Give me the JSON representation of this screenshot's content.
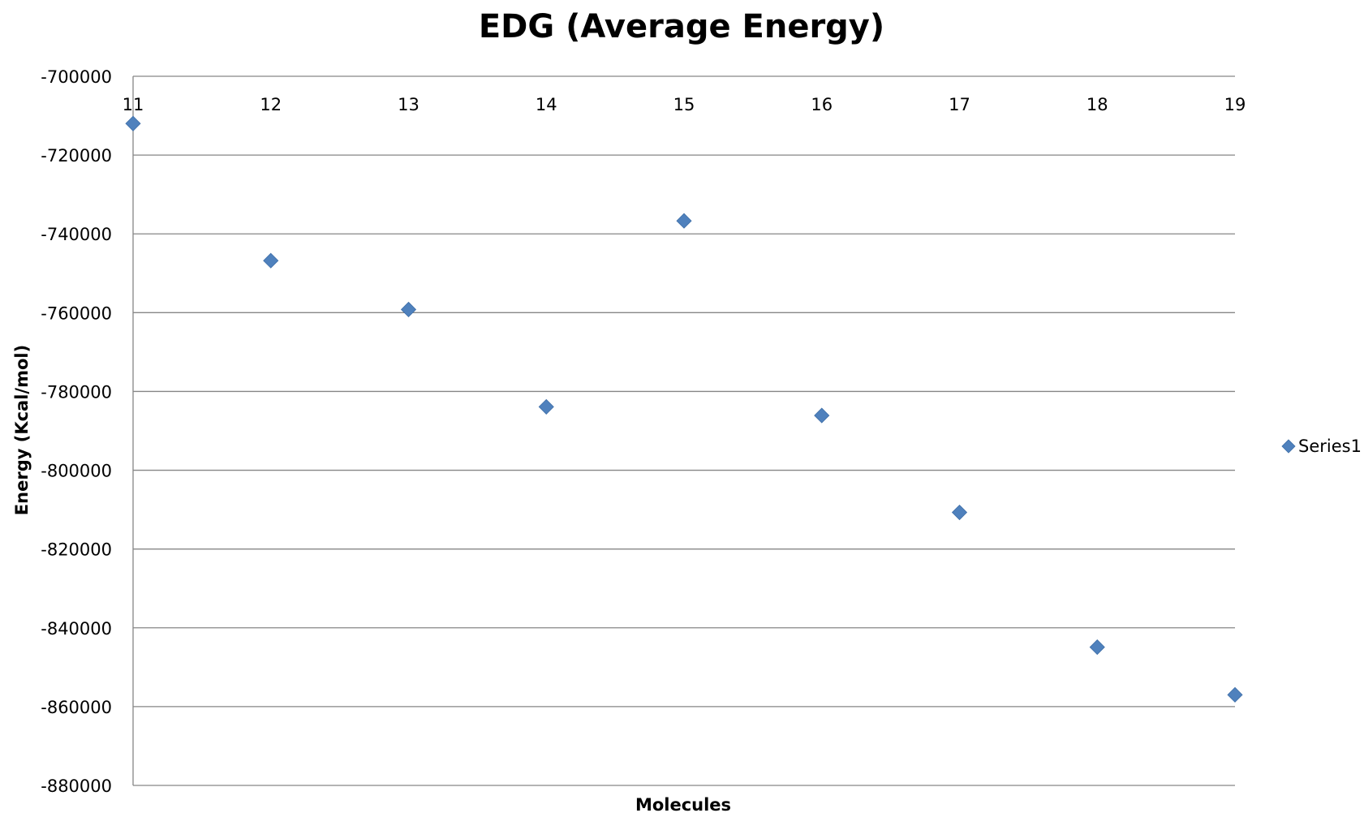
{
  "chart_data": {
    "type": "scatter",
    "title": "EDG (Average Energy)",
    "xlabel": "Molecules",
    "ylabel": "Energy (Kcal/mol)",
    "x": [
      11,
      12,
      13,
      14,
      15,
      16,
      17,
      18,
      19
    ],
    "x_ticks": [
      "11",
      "12",
      "13",
      "14",
      "15",
      "16",
      "17",
      "18",
      "19"
    ],
    "x_axis_position": "top",
    "ylim": [
      -880000,
      -700000
    ],
    "y_ticks": [
      -700000,
      -720000,
      -740000,
      -760000,
      -780000,
      -800000,
      -820000,
      -840000,
      -860000,
      -880000
    ],
    "grid": "horizontal",
    "legend_position": "right",
    "series": [
      {
        "name": "Series1",
        "marker": "diamond",
        "color": "#4F81BD",
        "x": [
          11,
          12,
          13,
          14,
          15,
          16,
          17,
          18,
          19
        ],
        "y": [
          -712000,
          -746800,
          -759200,
          -783900,
          -736700,
          -786100,
          -810700,
          -844900,
          -857000
        ]
      }
    ]
  }
}
